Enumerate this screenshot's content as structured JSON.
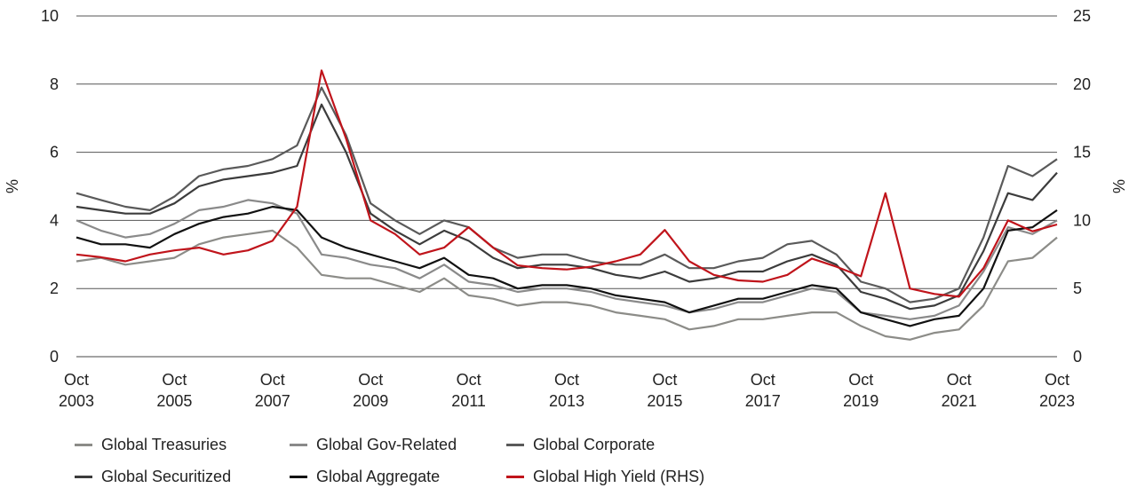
{
  "chart_data": {
    "type": "line",
    "ylabel": "%",
    "ylabel_right": "%",
    "ylim": [
      0,
      10
    ],
    "ylim_right": [
      0,
      25
    ],
    "y_ticks": [
      "0",
      "2",
      "4",
      "6",
      "8",
      "10"
    ],
    "y_ticks_right": [
      "0",
      "5",
      "10",
      "15",
      "20",
      "25"
    ],
    "x_ticks": [
      {
        "month": "Oct",
        "year": "2003"
      },
      {
        "month": "Oct",
        "year": "2005"
      },
      {
        "month": "Oct",
        "year": "2007"
      },
      {
        "month": "Oct",
        "year": "2009"
      },
      {
        "month": "Oct",
        "year": "2011"
      },
      {
        "month": "Oct",
        "year": "2013"
      },
      {
        "month": "Oct",
        "year": "2015"
      },
      {
        "month": "Oct",
        "year": "2017"
      },
      {
        "month": "Oct",
        "year": "2019"
      },
      {
        "month": "Oct",
        "year": "2021"
      },
      {
        "month": "Oct",
        "year": "2023"
      }
    ],
    "x": [
      "2003-10",
      "2004-04",
      "2004-10",
      "2005-04",
      "2005-10",
      "2006-04",
      "2006-10",
      "2007-04",
      "2007-10",
      "2008-04",
      "2008-10",
      "2009-04",
      "2009-10",
      "2010-04",
      "2010-10",
      "2011-04",
      "2011-10",
      "2012-04",
      "2012-10",
      "2013-04",
      "2013-10",
      "2014-04",
      "2014-10",
      "2015-04",
      "2015-10",
      "2016-04",
      "2016-10",
      "2017-04",
      "2017-10",
      "2018-04",
      "2018-10",
      "2019-04",
      "2019-10",
      "2020-04",
      "2020-10",
      "2021-04",
      "2021-10",
      "2022-04",
      "2022-10",
      "2023-04",
      "2023-10"
    ],
    "grid": true,
    "legend_position": "bottom-left",
    "series": [
      {
        "name": "Global Treasuries",
        "color": "#8c8c88",
        "axis": "left",
        "values": [
          2.8,
          2.9,
          2.7,
          2.8,
          2.9,
          3.3,
          3.5,
          3.6,
          3.7,
          3.2,
          2.4,
          2.3,
          2.3,
          2.1,
          1.9,
          2.3,
          1.8,
          1.7,
          1.5,
          1.6,
          1.6,
          1.5,
          1.3,
          1.2,
          1.1,
          0.8,
          0.9,
          1.1,
          1.1,
          1.2,
          1.3,
          1.3,
          0.9,
          0.6,
          0.5,
          0.7,
          0.8,
          1.5,
          2.8,
          2.9,
          3.5
        ]
      },
      {
        "name": "Global Gov-Related",
        "color": "#8a8a8a",
        "axis": "left",
        "values": [
          4.0,
          3.7,
          3.5,
          3.6,
          3.9,
          4.3,
          4.4,
          4.6,
          4.5,
          4.2,
          3.0,
          2.9,
          2.7,
          2.6,
          2.3,
          2.7,
          2.2,
          2.1,
          1.9,
          2.0,
          2.0,
          1.9,
          1.7,
          1.6,
          1.5,
          1.3,
          1.4,
          1.6,
          1.6,
          1.8,
          2.0,
          1.9,
          1.3,
          1.2,
          1.1,
          1.2,
          1.5,
          2.5,
          3.8,
          3.6,
          4.0
        ]
      },
      {
        "name": "Global Corporate",
        "color": "#5a5a5a",
        "axis": "left",
        "values": [
          4.8,
          4.6,
          4.4,
          4.3,
          4.7,
          5.3,
          5.5,
          5.6,
          5.8,
          6.2,
          7.9,
          6.5,
          4.5,
          4.0,
          3.6,
          4.0,
          3.8,
          3.2,
          2.9,
          3.0,
          3.0,
          2.8,
          2.7,
          2.7,
          3.0,
          2.6,
          2.6,
          2.8,
          2.9,
          3.3,
          3.4,
          3.0,
          2.2,
          2.0,
          1.6,
          1.7,
          2.0,
          3.5,
          5.6,
          5.3,
          5.8
        ]
      },
      {
        "name": "Global Securitized",
        "color": "#3c3c3c",
        "axis": "left",
        "values": [
          4.4,
          4.3,
          4.2,
          4.2,
          4.5,
          5.0,
          5.2,
          5.3,
          5.4,
          5.6,
          7.4,
          6.0,
          4.2,
          3.7,
          3.3,
          3.7,
          3.4,
          2.9,
          2.6,
          2.7,
          2.7,
          2.6,
          2.4,
          2.3,
          2.5,
          2.2,
          2.3,
          2.5,
          2.5,
          2.8,
          3.0,
          2.7,
          1.9,
          1.7,
          1.4,
          1.5,
          1.8,
          3.1,
          4.8,
          4.6,
          5.4
        ]
      },
      {
        "name": "Global Aggregate",
        "color": "#111111",
        "axis": "left",
        "values": [
          3.5,
          3.3,
          3.3,
          3.2,
          3.6,
          3.9,
          4.1,
          4.2,
          4.4,
          4.3,
          3.5,
          3.2,
          3.0,
          2.8,
          2.6,
          2.9,
          2.4,
          2.3,
          2.0,
          2.1,
          2.1,
          2.0,
          1.8,
          1.7,
          1.6,
          1.3,
          1.5,
          1.7,
          1.7,
          1.9,
          2.1,
          2.0,
          1.3,
          1.1,
          0.9,
          1.1,
          1.2,
          2.0,
          3.7,
          3.8,
          4.3
        ]
      },
      {
        "name": "Global High Yield (RHS)",
        "color": "#c0141b",
        "axis": "right",
        "values": [
          7.5,
          7.3,
          7.0,
          7.5,
          7.8,
          8.0,
          7.5,
          7.8,
          8.5,
          11.0,
          21.0,
          16.0,
          10.0,
          9.0,
          7.5,
          8.0,
          9.5,
          8.0,
          6.7,
          6.5,
          6.4,
          6.6,
          7.0,
          7.5,
          9.3,
          7.0,
          6.0,
          5.6,
          5.5,
          6.0,
          7.2,
          6.6,
          5.9,
          12.0,
          5.0,
          4.6,
          4.4,
          6.5,
          10.0,
          9.2,
          9.7
        ]
      }
    ]
  }
}
